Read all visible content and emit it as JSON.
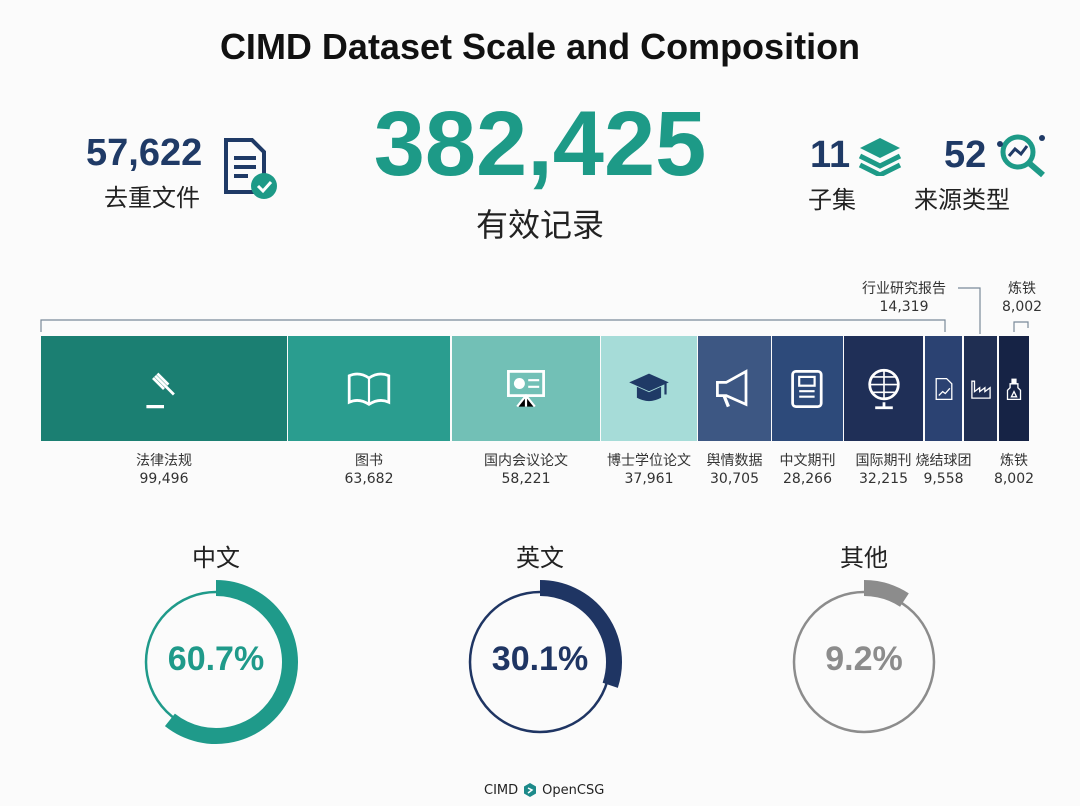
{
  "chart_data": {
    "type": "bar",
    "title": "CIMD Dataset Scale and Composition",
    "stats": {
      "total": {
        "value": "382,425",
        "label": "有效记录"
      },
      "dedup_files": {
        "value": "57,622",
        "label": "去重文件",
        "icon": "document-check-icon"
      },
      "subsets": {
        "value": "11",
        "label": "子集",
        "icon": "layers-icon"
      },
      "source_types": {
        "value": "52",
        "label": "来源类型",
        "icon": "search-analytics-icon"
      }
    },
    "segments": [
      {
        "label": "法律法规",
        "value": 99496,
        "text": "99,496",
        "color": "#1b7f72",
        "icon": "gavel-icon"
      },
      {
        "label": "图书",
        "value": 63682,
        "text": "63,682",
        "color": "#2a9d8f",
        "icon": "open-book-icon"
      },
      {
        "label": "国内会议论文",
        "value": 58221,
        "text": "58,221",
        "color": "#72c0b6",
        "icon": "presentation-board-icon"
      },
      {
        "label": "博士学位论文",
        "value": 37961,
        "text": "37,961",
        "color": "#a6dcd8",
        "icon": "graduation-cap-icon"
      },
      {
        "label": "舆情数据",
        "value": 30705,
        "text": "30,705",
        "color": "#3d5783",
        "icon": "megaphone-icon"
      },
      {
        "label": "中文期刊",
        "value": 28266,
        "text": "28,266",
        "color": "#2d4a7a",
        "icon": "journal-icon"
      },
      {
        "label": "国际期刊",
        "value": 32215,
        "text": "32,215",
        "color": "#1f2f57",
        "icon": "globe-icon"
      },
      {
        "label": "烧结球团",
        "value": 9558,
        "text": "9,558",
        "color": "#2b4272",
        "icon": "report-chart-icon"
      },
      {
        "label": "行业研究报告",
        "value": 14319,
        "text": "14,319",
        "color": "#1f2e52",
        "icon": "factory-icon"
      },
      {
        "label": "炼铁",
        "value": 8002,
        "text": "8,002",
        "color": "#162345",
        "icon": "furnace-icon"
      }
    ],
    "languages": [
      {
        "label": "中文",
        "value": 60.7,
        "text": "60.7%",
        "color": "#1f9a8a"
      },
      {
        "label": "英文",
        "value": 30.1,
        "text": "30.1%",
        "color": "#1f3563"
      },
      {
        "label": "其他",
        "value": 9.2,
        "text": "9.2%",
        "color": "#8c8c8c"
      }
    ]
  },
  "footer": {
    "left": "CIMD",
    "right": "OpenCSG"
  }
}
